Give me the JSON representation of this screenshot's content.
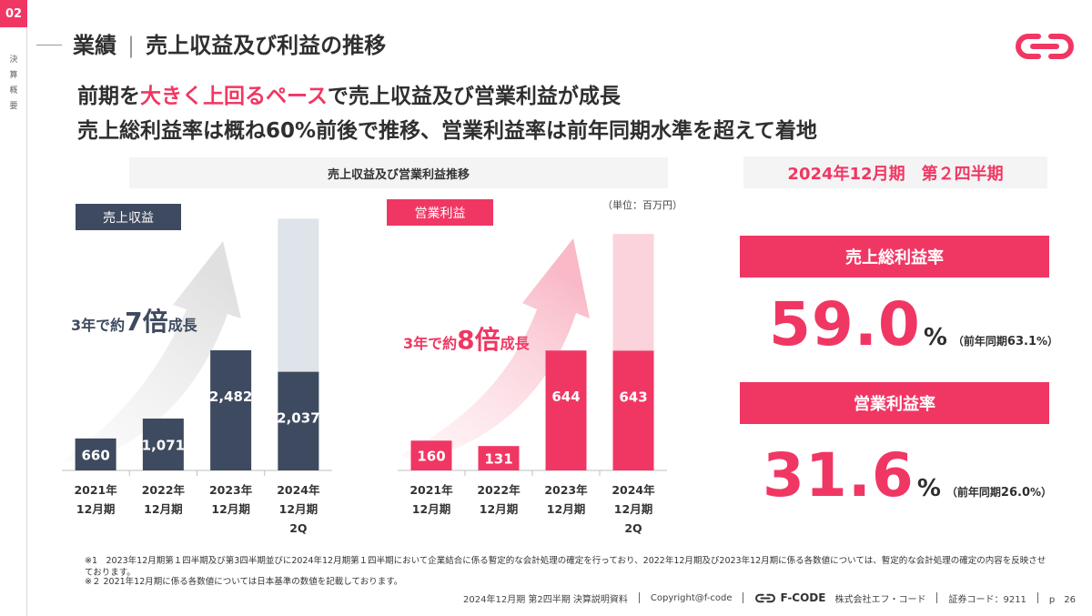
{
  "section": {
    "number": "02",
    "vertical_label": [
      "決",
      "算",
      "概",
      "要"
    ]
  },
  "title": {
    "main": "業績",
    "sub": "売上収益及び利益の推移"
  },
  "headline": {
    "line1_pre": "前期を",
    "line1_accent": "大きく上回るペース",
    "line1_post": "で売上収益及び営業利益が成長",
    "line2": "売上総利益率は概ね60%前後で推移、営業利益率は前年同期水準を超えて着地"
  },
  "chart_header": "売上収益及び営業利益推移",
  "unit": "（単位：百万円）",
  "revenue": {
    "tag": "売上収益",
    "growth_pre": "3年で約",
    "growth_big": "7倍",
    "growth_post": "成長"
  },
  "operating": {
    "tag": "営業利益",
    "growth_pre": "3年で約",
    "growth_big": "8倍",
    "growth_post": "成長"
  },
  "right_panel": {
    "period": "2024年12月期　第２四半期",
    "gross_label": "売上総利益率",
    "gross_value": "59.0",
    "gross_unit": "%",
    "gross_prev_pre": "（前年同期",
    "gross_prev_val": "63.1",
    "gross_prev_post": "%）",
    "op_label": "営業利益率",
    "op_value": "31.6",
    "op_unit": "%",
    "op_prev_pre": "（前年同期",
    "op_prev_val": "26.0",
    "op_prev_post": "%）"
  },
  "notes": {
    "note1": "※1　2023年12月期第１四半期及び第3四半期並びに2024年12月期第１四半期において企業結合に係る暫定的な会計処理の確定を行っており、2022年12月期及び2023年12月期に係る各数値については、暫定的な会計処理の確定の内容を反映させております。",
    "note2": "※２ 2021年12月期に係る各数値については日本基準の数値を記載しております。"
  },
  "footer": {
    "doc": "2024年12月期 第2四半期 決算説明資料",
    "copyright": "Copyright@f-code",
    "brand": "F-CODE",
    "company": "株式会社エフ・コード",
    "code": "証券コード：9211",
    "page": "p　26"
  },
  "colors": {
    "accent": "#f03763",
    "navy": "#3e4a5f",
    "light_navy": "#dfe3ea",
    "light_pink": "#fbd3dc"
  },
  "chart_data": [
    {
      "type": "bar",
      "categories": [
        "2021年12月期",
        "2022年12月期",
        "2023年12月期",
        "2024年12月期2Q"
      ],
      "category_lines": [
        [
          "2021年",
          "12月期"
        ],
        [
          "2022年",
          "12月期"
        ],
        [
          "2023年",
          "12月期"
        ],
        [
          "2024年",
          "12月期",
          "2Q"
        ]
      ],
      "values": [
        660,
        1071,
        2482,
        2037
      ],
      "value_labels": [
        "660",
        "1,071",
        "2,482",
        "2,037"
      ],
      "series_name": "売上収益",
      "ylim": [
        0,
        5300
      ],
      "ghost_bar": {
        "category": "2024年12月期2Q",
        "value": 5200
      }
    },
    {
      "type": "bar",
      "categories": [
        "2021年12月期",
        "2022年12月期",
        "2023年12月期",
        "2024年12月期2Q"
      ],
      "category_lines": [
        [
          "2021年",
          "12月期"
        ],
        [
          "2022年",
          "12月期"
        ],
        [
          "2023年",
          "12月期"
        ],
        [
          "2024年",
          "12月期",
          "2Q"
        ]
      ],
      "values": [
        160,
        131,
        644,
        643
      ],
      "value_labels": [
        "160",
        "131",
        "644",
        "643"
      ],
      "series_name": "営業利益",
      "ylim": [
        0,
        1300
      ],
      "ghost_bar": {
        "category": "2024年12月期2Q",
        "value": 1270
      }
    }
  ]
}
